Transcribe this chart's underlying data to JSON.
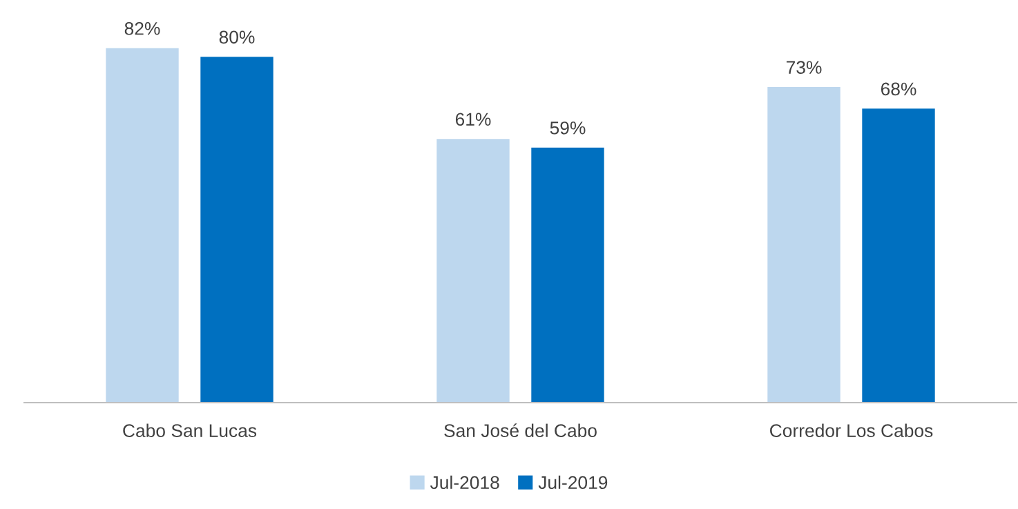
{
  "chart_data": {
    "type": "bar",
    "categories": [
      "Cabo San Lucas",
      "San José del Cabo",
      "Corredor Los Cabos"
    ],
    "series": [
      {
        "name": "Jul-2018",
        "color": "#bdd7ee",
        "values": [
          82,
          61,
          73
        ],
        "value_labels": [
          "82%",
          "61%",
          "73%"
        ]
      },
      {
        "name": "Jul-2019",
        "color": "#0070c0",
        "values": [
          80,
          59,
          68
        ],
        "value_labels": [
          "80%",
          "59%",
          "68%"
        ]
      }
    ],
    "tick_labels": "x",
    "grid": false,
    "legend": "bottom"
  }
}
